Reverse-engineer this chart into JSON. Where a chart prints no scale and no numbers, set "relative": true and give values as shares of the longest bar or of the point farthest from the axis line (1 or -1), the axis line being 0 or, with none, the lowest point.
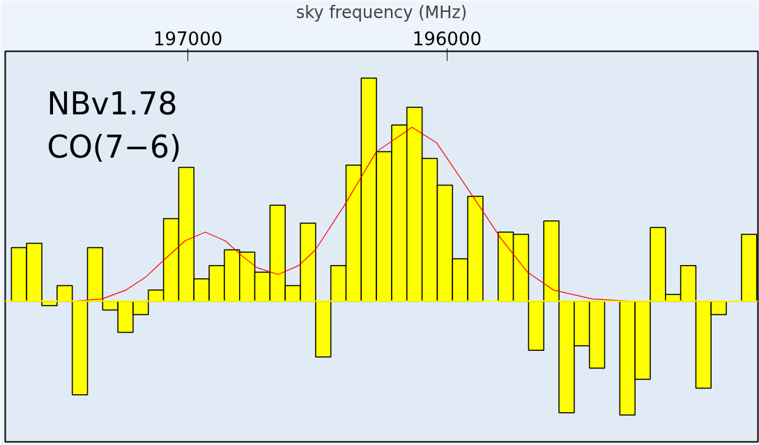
{
  "chart_data": {
    "type": "bar",
    "xlabel": "sky frequency (MHz)",
    "relative": true,
    "annotations": [
      "NBv1.78",
      "CO(7−6)"
    ],
    "xlim": [
      197705,
      194800
    ],
    "ref_lines": [
      {
        "axis": "y",
        "value": 0,
        "color": "#ffff00"
      }
    ],
    "xticks": [
      197000,
      196000
    ],
    "x": [
      197651.7,
      197593,
      197534.3,
      197475.6,
      197416.9,
      197358.2,
      197299.5,
      197240.8,
      197182.1,
      197123.4,
      197064.7,
      197006,
      196947.3,
      196888.6,
      196829.9,
      196771.2,
      196712.5,
      196653.8,
      196595.1,
      196536.4,
      196477.7,
      196419,
      196360.3,
      196301.6,
      196242.9,
      196184.2,
      196125.5,
      196066.8,
      196008.1,
      195949.4,
      195890.7,
      195832,
      195773.3,
      195714.6,
      195655.9,
      195597.2,
      195538.5,
      195479.8,
      195421.1,
      195362.4,
      195303.7,
      195245,
      195186.3,
      195127.6,
      195068.9,
      195010.2,
      194951.5,
      194892.8,
      194834.1
    ],
    "series": [
      {
        "color": "#ffff00",
        "values": [
          0.24,
          0.26,
          -0.02,
          0.07,
          -0.42,
          0.24,
          -0.04,
          -0.14,
          -0.06,
          0.05,
          0.37,
          0.6,
          0.1,
          0.16,
          0.23,
          0.22,
          0.13,
          0.43,
          0.07,
          0.35,
          -0.25,
          0.16,
          0.61,
          1,
          0.67,
          0.79,
          0.87,
          0.64,
          0.52,
          0.19,
          0.47,
          null,
          0.31,
          0.3,
          -0.22,
          0.36,
          -0.5,
          -0.2,
          -0.3,
          null,
          -0.51,
          -0.35,
          0.33,
          0.03,
          0.16,
          -0.39,
          -0.06,
          null,
          0.3
        ]
      },
      {
        "type": "line",
        "color": "#ff0000",
        "x": [
          197705,
          197444,
          197332,
          197239,
          197161,
          197097,
          197012,
          196933,
          196855,
          196788,
          196732,
          196652,
          196572,
          196508,
          196396,
          196273,
          196135,
          196040,
          195900,
          195791,
          195689,
          195589,
          195439,
          195290,
          194825
        ],
        "values": [
          0,
          0,
          0.01,
          0.05,
          0.11,
          0.18,
          0.27,
          0.31,
          0.27,
          0.2,
          0.15,
          0.12,
          0.16,
          0.23,
          0.43,
          0.67,
          0.78,
          0.71,
          0.47,
          0.28,
          0.13,
          0.05,
          0.01,
          0,
          0
        ]
      }
    ]
  }
}
